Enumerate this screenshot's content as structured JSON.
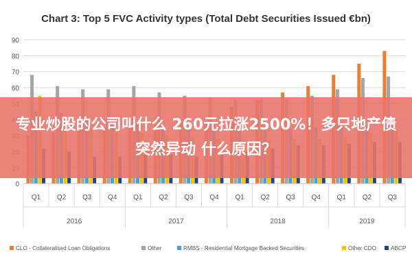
{
  "chart_data": {
    "type": "bar",
    "title": "Chart 3: Top 5 FVC Activity types (Total Debt Securities Issued €bn)",
    "ylim": [
      0,
      90
    ],
    "yticks": [
      0,
      10,
      20,
      30,
      40,
      50,
      60,
      70,
      80,
      90
    ],
    "grid": true,
    "legend_position": "bottom",
    "categories": [
      "Q1",
      "Q2",
      "Q3",
      "Q4",
      "Q1",
      "Q2",
      "Q3",
      "Q4",
      "Q1",
      "Q2",
      "Q3",
      "Q4",
      "Q1",
      "Q2",
      "Q3"
    ],
    "year_groups": [
      {
        "label": "2016",
        "count": 4
      },
      {
        "label": "2017",
        "count": 4
      },
      {
        "label": "2018",
        "count": 4
      },
      {
        "label": "2019",
        "count": 3
      }
    ],
    "series": [
      {
        "name": "CLO - Collateralised Loan Obligations",
        "color": "#ED7D31",
        "values": [
          30,
          32,
          33,
          35,
          36,
          37,
          38,
          37,
          48,
          52,
          57,
          61,
          68,
          75,
          83
        ]
      },
      {
        "name": "Other",
        "color": "#A5A5A5",
        "values": [
          68,
          61,
          59,
          59,
          61,
          57,
          55,
          54,
          52,
          53,
          53,
          55,
          59,
          66,
          67
        ]
      },
      {
        "name": "RMBS - Residential Mortgage Backed Securities",
        "color": "#4A9FD6",
        "values": [
          45,
          44,
          40,
          38,
          38,
          36,
          35,
          34,
          33,
          34,
          34,
          35,
          35,
          36,
          37
        ]
      },
      {
        "name": "Other CDO",
        "color": "#FFC000",
        "values": [
          55,
          40,
          35,
          32,
          32,
          30,
          29,
          28,
          27,
          27,
          28,
          28,
          29,
          32,
          33
        ]
      },
      {
        "name": "ABCP",
        "color": "#264478",
        "values": [
          22,
          20,
          17,
          17,
          18,
          18,
          17,
          19,
          20,
          22,
          24,
          24,
          25,
          26,
          26
        ]
      }
    ]
  },
  "overlay": {
    "text": "专业炒股的公司叫什么 260元拉涨2500%！多只地产债突然异动 什么原因？"
  }
}
